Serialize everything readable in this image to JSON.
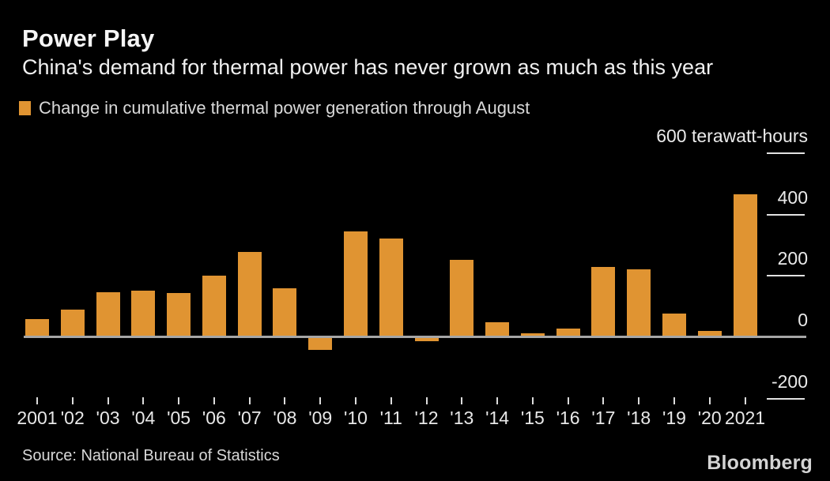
{
  "header": {
    "title": "Power Play",
    "subtitle": "China's demand for thermal power has never grown as much as this year"
  },
  "legend": {
    "label": "Change in cumulative thermal power generation through August"
  },
  "chart_data": {
    "type": "bar",
    "title": "Power Play",
    "subtitle": "China's demand for thermal power has never grown as much as this year",
    "series_label": "Change in cumulative thermal power generation through August",
    "unit": "terawatt-hours",
    "categories": [
      "2001",
      "'02",
      "'03",
      "'04",
      "'05",
      "'06",
      "'07",
      "'08",
      "'09",
      "'10",
      "'11",
      "'12",
      "'13",
      "'14",
      "'15",
      "'16",
      "'17",
      "'18",
      "'19",
      "'20",
      "2021"
    ],
    "values": [
      60,
      90,
      146,
      153,
      145,
      200,
      277,
      160,
      -42,
      345,
      322,
      -12,
      252,
      48,
      14,
      28,
      228,
      221,
      76,
      20,
      465
    ],
    "ylim": [
      -200,
      600
    ],
    "yticks": [
      {
        "value": 600,
        "label": "600 terawatt-hours"
      },
      {
        "value": 400,
        "label": "400"
      },
      {
        "value": 200,
        "label": "200"
      },
      {
        "value": 0,
        "label": "0"
      },
      {
        "value": -200,
        "label": "-200"
      }
    ],
    "bar_color": "#E09432",
    "axis_color": "#a6a6a6",
    "legend_position": "top-left",
    "grid": false
  },
  "footer": {
    "source": "Source: National Bureau of Statistics",
    "brand": "Bloomberg"
  }
}
